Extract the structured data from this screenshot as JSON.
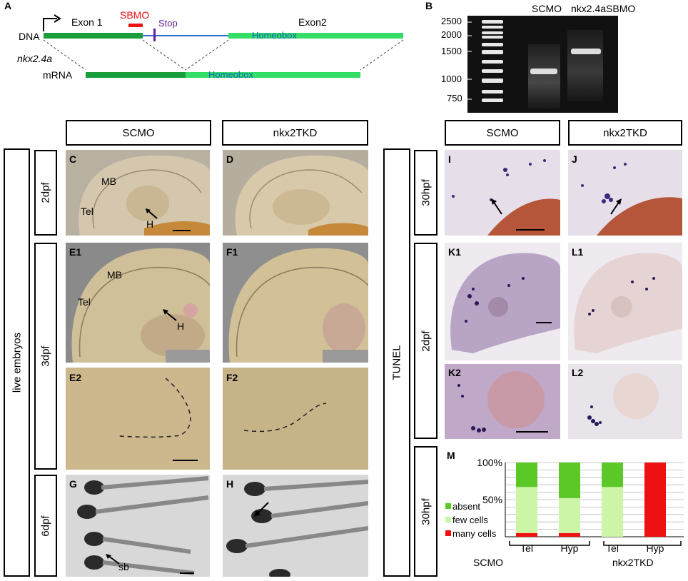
{
  "panel_a": {
    "letter": "A",
    "dna_label": "DNA",
    "exon1_label": "Exon 1",
    "exon2_label": "Exon2",
    "sbmo_label": "SBMO",
    "stop_label": "Stop",
    "homeobox_dna": "Homeobox",
    "gene_label": "nkx2.4a",
    "mrna_label": "mRNA",
    "homeobox_mrna": "Homeobox",
    "colors": {
      "exon_dark": "#1a9e3c",
      "exon_light": "#33dd66",
      "intron": "#3a6fc7",
      "sbmo": "#ee1111",
      "stop": "#6a1b9a"
    }
  },
  "panel_b": {
    "letter": "B",
    "ladder": [
      "2500",
      "2000",
      "1500",
      "1000",
      "750"
    ],
    "lane1": "SCMO",
    "lane2": "nkx2.4aSBMO"
  },
  "left_headers": {
    "col1": "SCMO",
    "col2": "nkx2TKD"
  },
  "right_headers": {
    "col1": "SCMO",
    "col2": "nkx2TKD"
  },
  "left_rows": {
    "group": "live embryos",
    "r1": "2dpf",
    "r2": "3dpf",
    "r3": "6dpf"
  },
  "right_rows": {
    "group": "TUNEL",
    "r1": "30hpf",
    "r2": "2dpf",
    "r3": "30hpf"
  },
  "panels": {
    "C": "C",
    "D": "D",
    "E1": "E1",
    "F1": "F1",
    "E2": "E2",
    "F2": "F2",
    "G": "G",
    "H": "H",
    "I": "I",
    "J": "J",
    "K1": "K1",
    "L1": "L1",
    "K2": "K2",
    "L2": "L2",
    "M": "M"
  },
  "annotations": {
    "mb": "MB",
    "tel": "Tel",
    "h": "H",
    "sb": "sb"
  },
  "chart_data": {
    "type": "bar",
    "stacked": true,
    "categories": [
      "Tel",
      "Hyp",
      "Tel",
      "Hyp"
    ],
    "groups": [
      "SCMO",
      "nkx2TKD"
    ],
    "yticks": [
      "100%",
      "50%"
    ],
    "ylim": [
      0,
      100
    ],
    "series": [
      {
        "name": "many cells",
        "color": "#ee1111",
        "values": [
          5,
          5,
          0,
          100
        ]
      },
      {
        "name": "few cells",
        "color": "#ccf5a8",
        "values": [
          62,
          47,
          67,
          0
        ]
      },
      {
        "name": "absent",
        "color": "#5cc828",
        "values": [
          33,
          48,
          33,
          0
        ]
      }
    ],
    "legend": [
      "absent",
      "few cells",
      "many cells"
    ],
    "grid": true
  }
}
